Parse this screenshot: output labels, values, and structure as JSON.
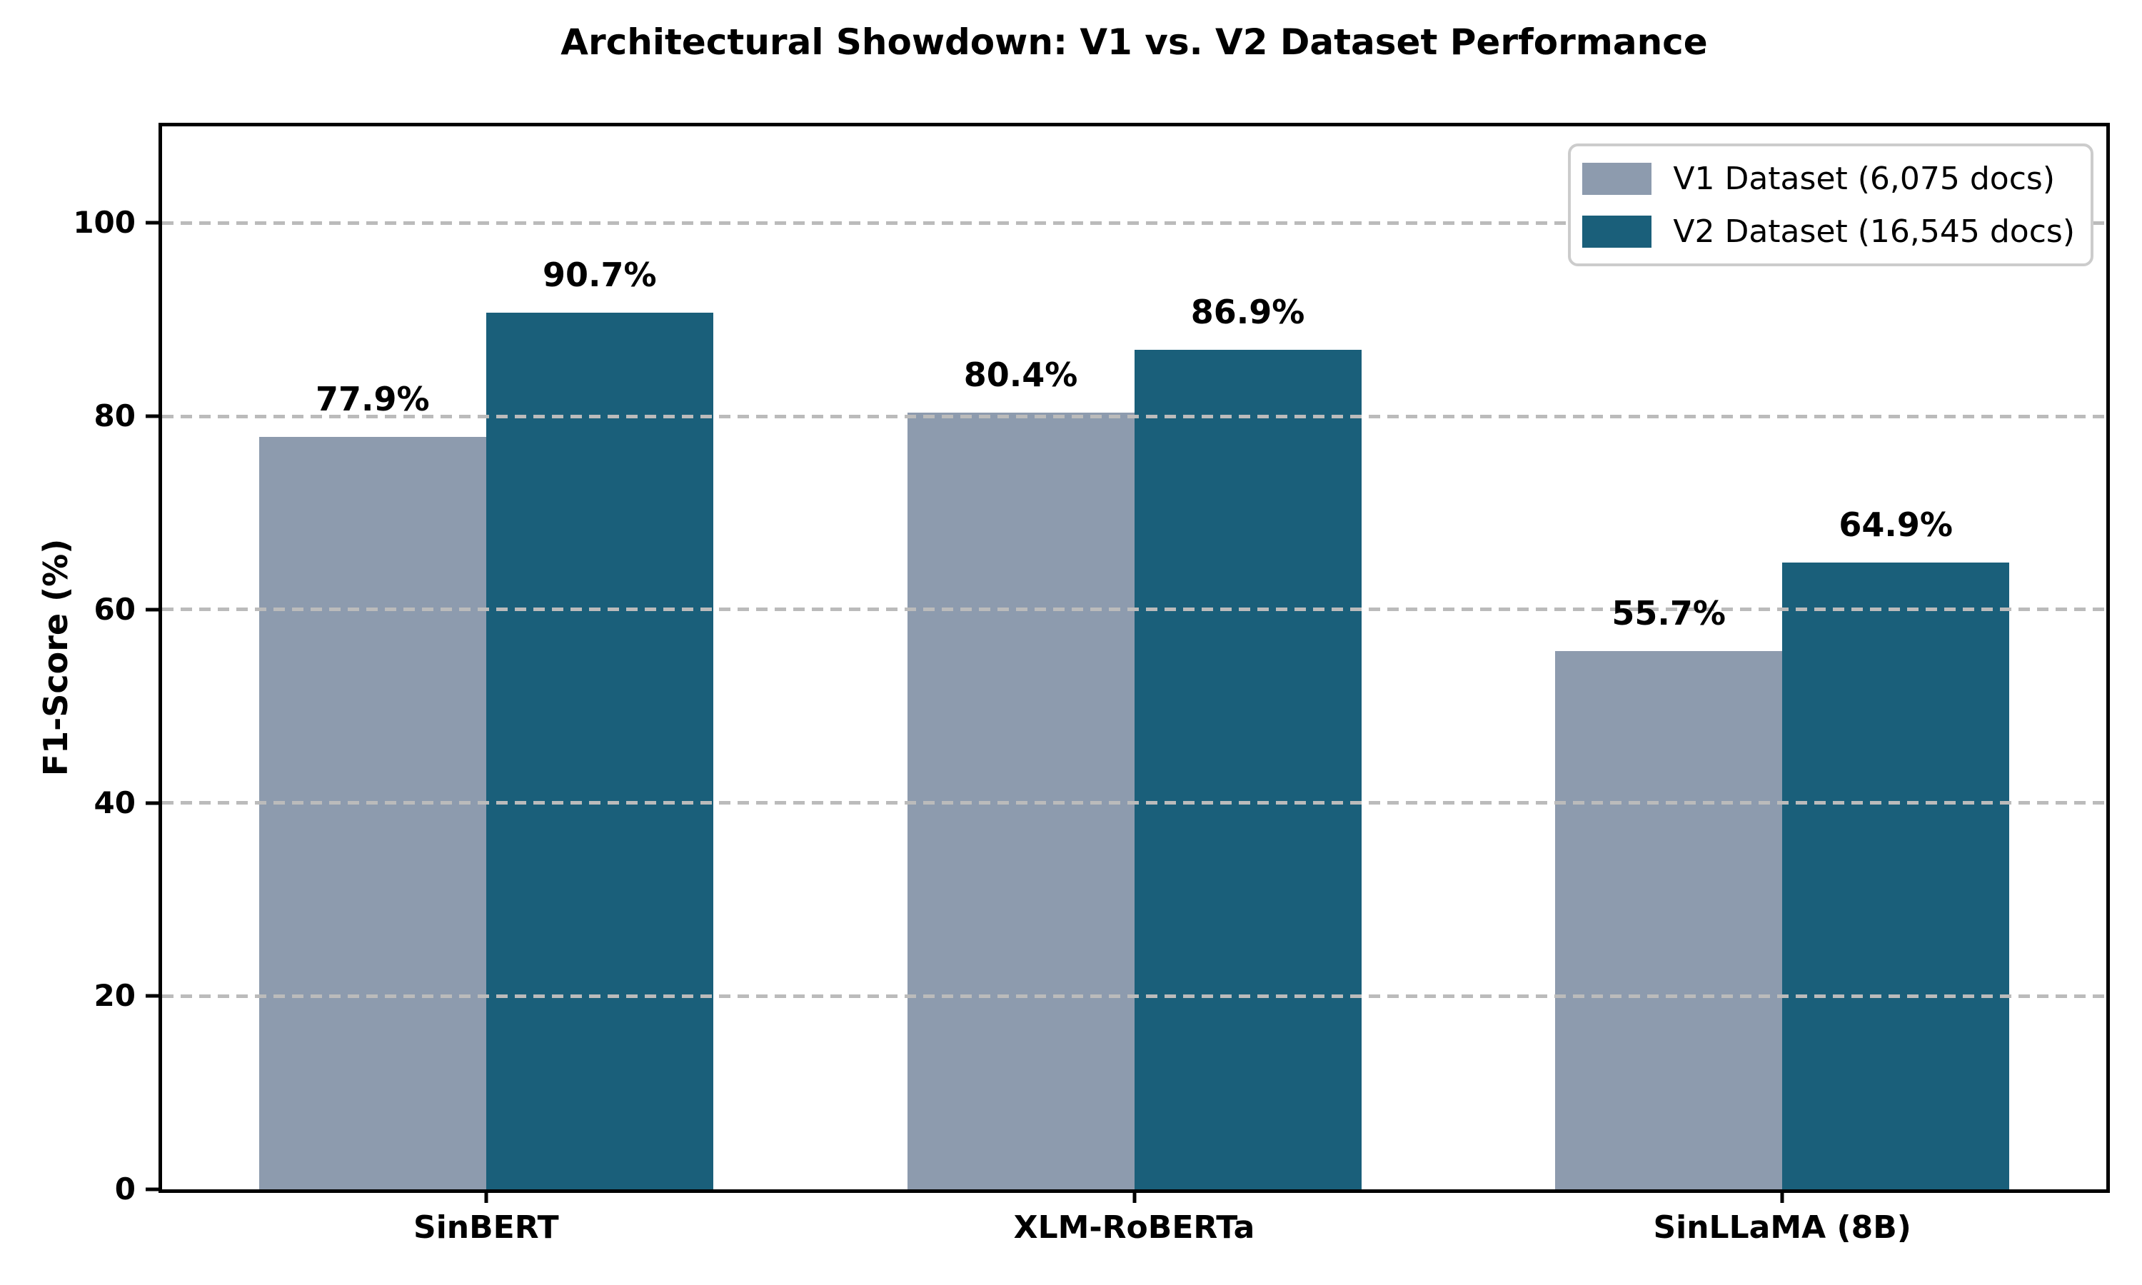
{
  "chart_data": {
    "type": "bar",
    "title": "Architectural Showdown: V1 vs. V2 Dataset Performance",
    "ylabel": "F1-Score (%)",
    "xlabel": "",
    "categories": [
      "SinBERT",
      "XLM-RoBERTa",
      "SinLLaMA (8B)"
    ],
    "series": [
      {
        "name": "V1 Dataset (6,075 docs)",
        "color": "#8d9bae",
        "values": [
          77.9,
          80.4,
          55.7
        ],
        "value_labels": [
          "77.9%",
          "80.4%",
          "55.7%"
        ]
      },
      {
        "name": "V2 Dataset (16,545 docs)",
        "color": "#1a5f7a",
        "values": [
          90.7,
          86.9,
          64.9
        ],
        "value_labels": [
          "90.7%",
          "86.9%",
          "64.9%"
        ]
      }
    ],
    "ylim": [
      0,
      110
    ],
    "yticks": [
      0,
      20,
      40,
      60,
      80,
      100
    ],
    "grid": "horizontal dashed gridlines drawn above bars",
    "grid_color": "#bbbbbb",
    "axis_color": "#000000",
    "background_color": "#ffffff",
    "legend_position": "upper right",
    "bar_group_width_fraction": 0.7
  }
}
